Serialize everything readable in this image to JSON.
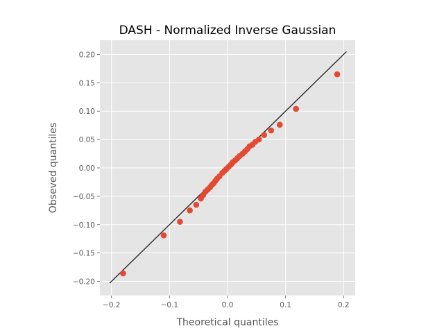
{
  "chart_data": {
    "type": "scatter",
    "title": "DASH - Normalized Inverse Gaussian",
    "xlabel": "Theoretical quantiles",
    "ylabel": "Obseved quantiles",
    "xlim": [
      -0.22,
      0.22
    ],
    "ylim": [
      -0.225,
      0.225
    ],
    "xticks": [
      -0.2,
      -0.1,
      0.0,
      0.1,
      0.2
    ],
    "xtick_labels": [
      "−0.2",
      "−0.1",
      "0.0",
      "0.1",
      "0.2"
    ],
    "yticks": [
      -0.2,
      -0.15,
      -0.1,
      -0.05,
      0.0,
      0.05,
      0.1,
      0.15,
      0.2
    ],
    "ytick_labels": [
      "−0.20",
      "−0.15",
      "−0.10",
      "−0.05",
      "0.00",
      "0.05",
      "0.10",
      "0.15",
      "0.20"
    ],
    "grid": true,
    "colors": {
      "background": "#e5e5e5",
      "grid": "#ffffff",
      "points": "#e24a33",
      "reference_line": "#333333"
    },
    "reference_line": {
      "x": [
        -0.203,
        0.205
      ],
      "y": [
        -0.203,
        0.205
      ]
    },
    "points": {
      "x": [
        -0.18,
        -0.11,
        -0.082,
        -0.065,
        -0.054,
        -0.046,
        -0.042,
        -0.038,
        -0.034,
        -0.03,
        -0.027,
        -0.024,
        -0.021,
        -0.018,
        -0.014,
        -0.009,
        -0.005,
        -0.002,
        0.002,
        0.006,
        0.009,
        0.013,
        0.017,
        0.021,
        0.026,
        0.03,
        0.034,
        0.038,
        0.043,
        0.048,
        0.054,
        0.063,
        0.075,
        0.09,
        0.118,
        0.189
      ],
      "y": [
        -0.186,
        -0.119,
        -0.095,
        -0.075,
        -0.065,
        -0.054,
        -0.048,
        -0.042,
        -0.038,
        -0.034,
        -0.03,
        -0.027,
        -0.023,
        -0.019,
        -0.015,
        -0.009,
        -0.005,
        -0.002,
        0.002,
        0.006,
        0.01,
        0.013,
        0.017,
        0.021,
        0.025,
        0.029,
        0.033,
        0.038,
        0.041,
        0.046,
        0.05,
        0.058,
        0.066,
        0.076,
        0.104,
        0.165
      ]
    }
  }
}
